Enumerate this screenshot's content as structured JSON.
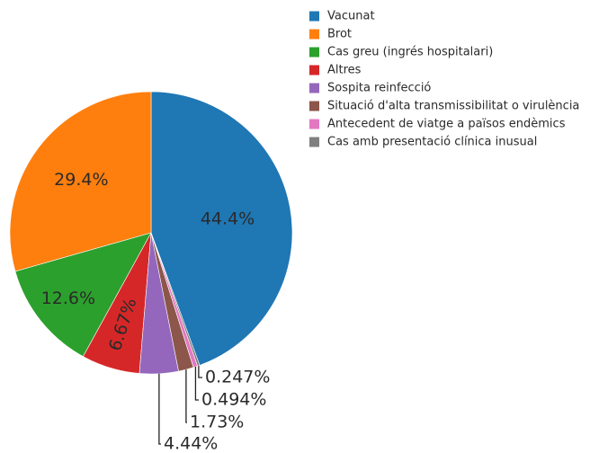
{
  "chart_data": {
    "type": "pie",
    "categories": [
      "Vacunat",
      "Brot",
      "Cas greu (ingrés hospitalari)",
      "Altres",
      "Sospita reinfecció",
      "Situació d'alta transmissibilitat o virulència",
      "Antecedent de viatge a països endèmics",
      "Cas amb presentació clínica inusual"
    ],
    "values": [
      44.4,
      29.4,
      12.6,
      6.67,
      4.44,
      1.73,
      0.494,
      0.247
    ],
    "value_labels": [
      "44.4%",
      "29.4%",
      "12.6%",
      "6.67%",
      "4.44%",
      "1.73%",
      "0.494%",
      "0.247%"
    ],
    "colors": [
      "#1f77b4",
      "#ff7f0e",
      "#2ca02c",
      "#d62728",
      "#9467bd",
      "#8c564b",
      "#e377c2",
      "#7f7f7f"
    ],
    "legend": "top-right"
  }
}
